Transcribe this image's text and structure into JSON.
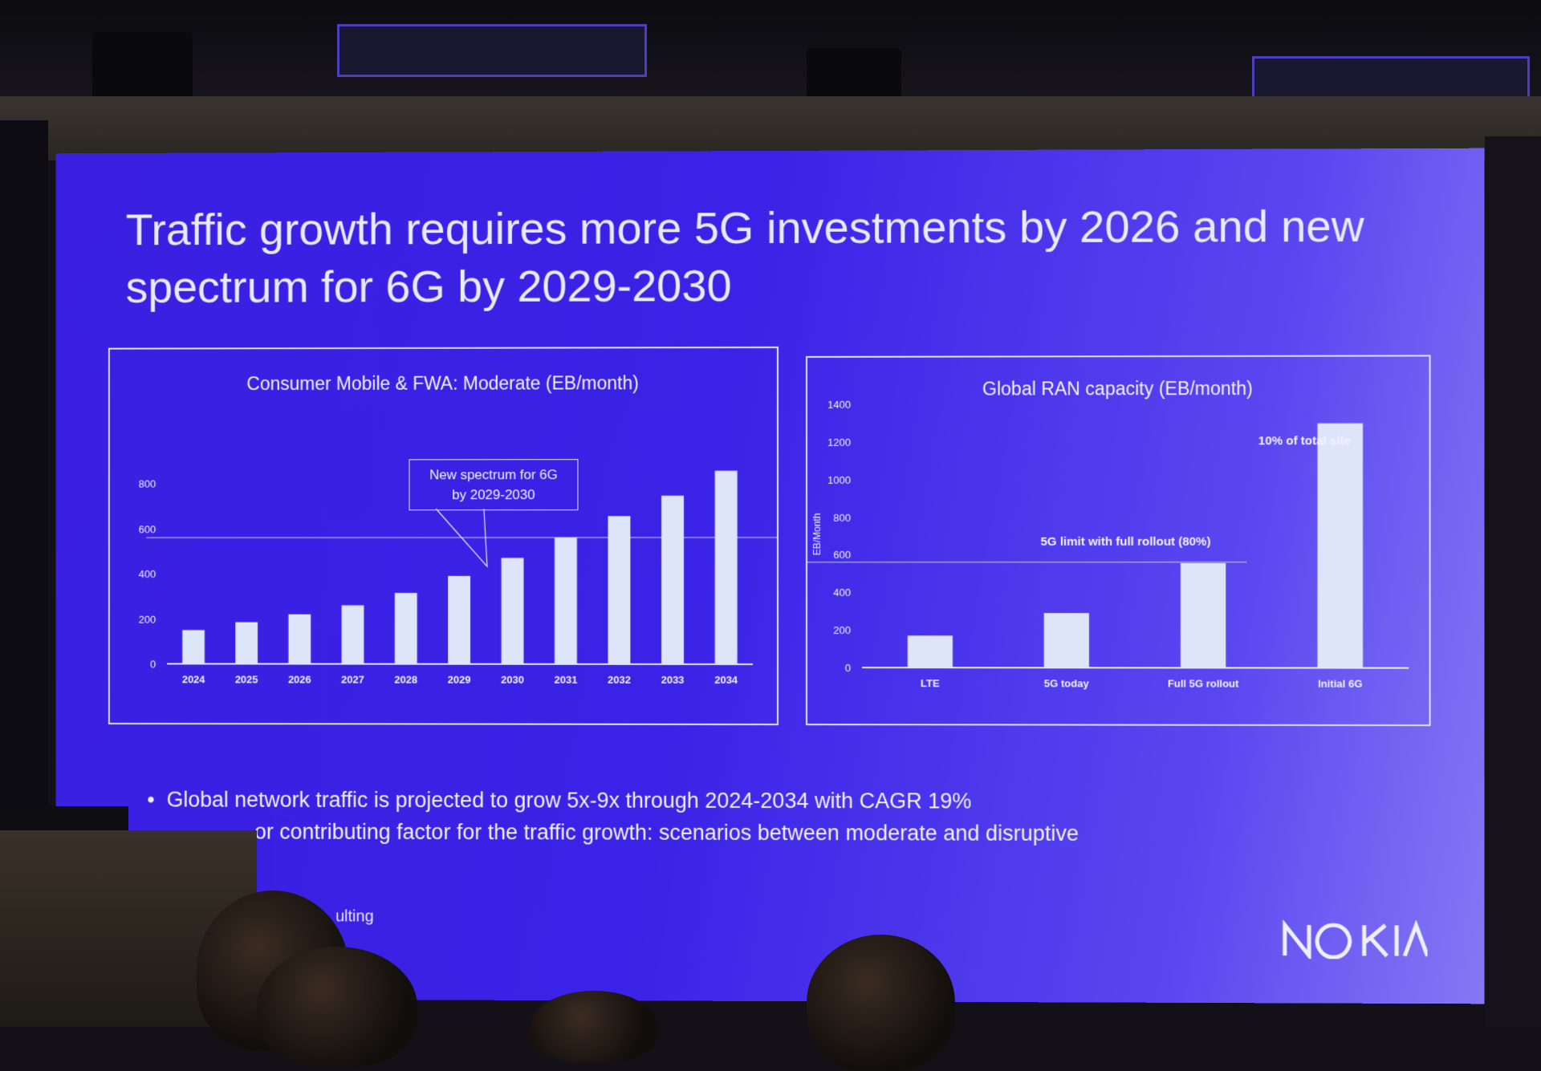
{
  "slide": {
    "title": "Traffic growth requires more 5G investments by 2026 and new spectrum for 6G by 2029-2030",
    "bullets": [
      "Global network traffic is projected to grow 5x-9x through 2024-2034 with CAGR 19%",
      "or contributing factor for the traffic growth: scenarios between moderate and disruptive"
    ],
    "source_fragment": "ulting",
    "logo_text": "NOKIA"
  },
  "callout": {
    "line1": "New spectrum for 6G",
    "line2": "by 2029-2030"
  },
  "colors": {
    "slide_bg": "#3a22e6",
    "bar": "#dde6f8",
    "text": "#f2f3ff"
  },
  "chart_data": [
    {
      "type": "bar",
      "title": "Consumer Mobile & FWA: Moderate (EB/month)",
      "categories": [
        "2024",
        "2025",
        "2026",
        "2027",
        "2028",
        "2029",
        "2030",
        "2031",
        "2032",
        "2033",
        "2034"
      ],
      "values": [
        150,
        185,
        220,
        260,
        315,
        390,
        470,
        560,
        655,
        745,
        855
      ],
      "yticks": [
        0,
        200,
        400,
        600,
        800
      ],
      "ylim": [
        0,
        900
      ],
      "reference_line": 560,
      "ylabel": "",
      "xlabel": ""
    },
    {
      "type": "bar",
      "title": "Global RAN capacity (EB/month)",
      "categories": [
        "LTE",
        "5G today",
        "Full 5G rollout",
        "Initial 6G"
      ],
      "values": [
        170,
        290,
        555,
        1295
      ],
      "yticks": [
        0,
        200,
        400,
        600,
        800,
        1000,
        1200,
        1400
      ],
      "ylim": [
        0,
        1400
      ],
      "ylabel": "EB/Month",
      "xlabel": "",
      "reference_line": 560,
      "annotations": [
        {
          "text": "5G limit with full rollout (80%)",
          "category": "Full 5G rollout"
        },
        {
          "text": "10% of total site",
          "category": "Initial 6G"
        }
      ]
    }
  ]
}
